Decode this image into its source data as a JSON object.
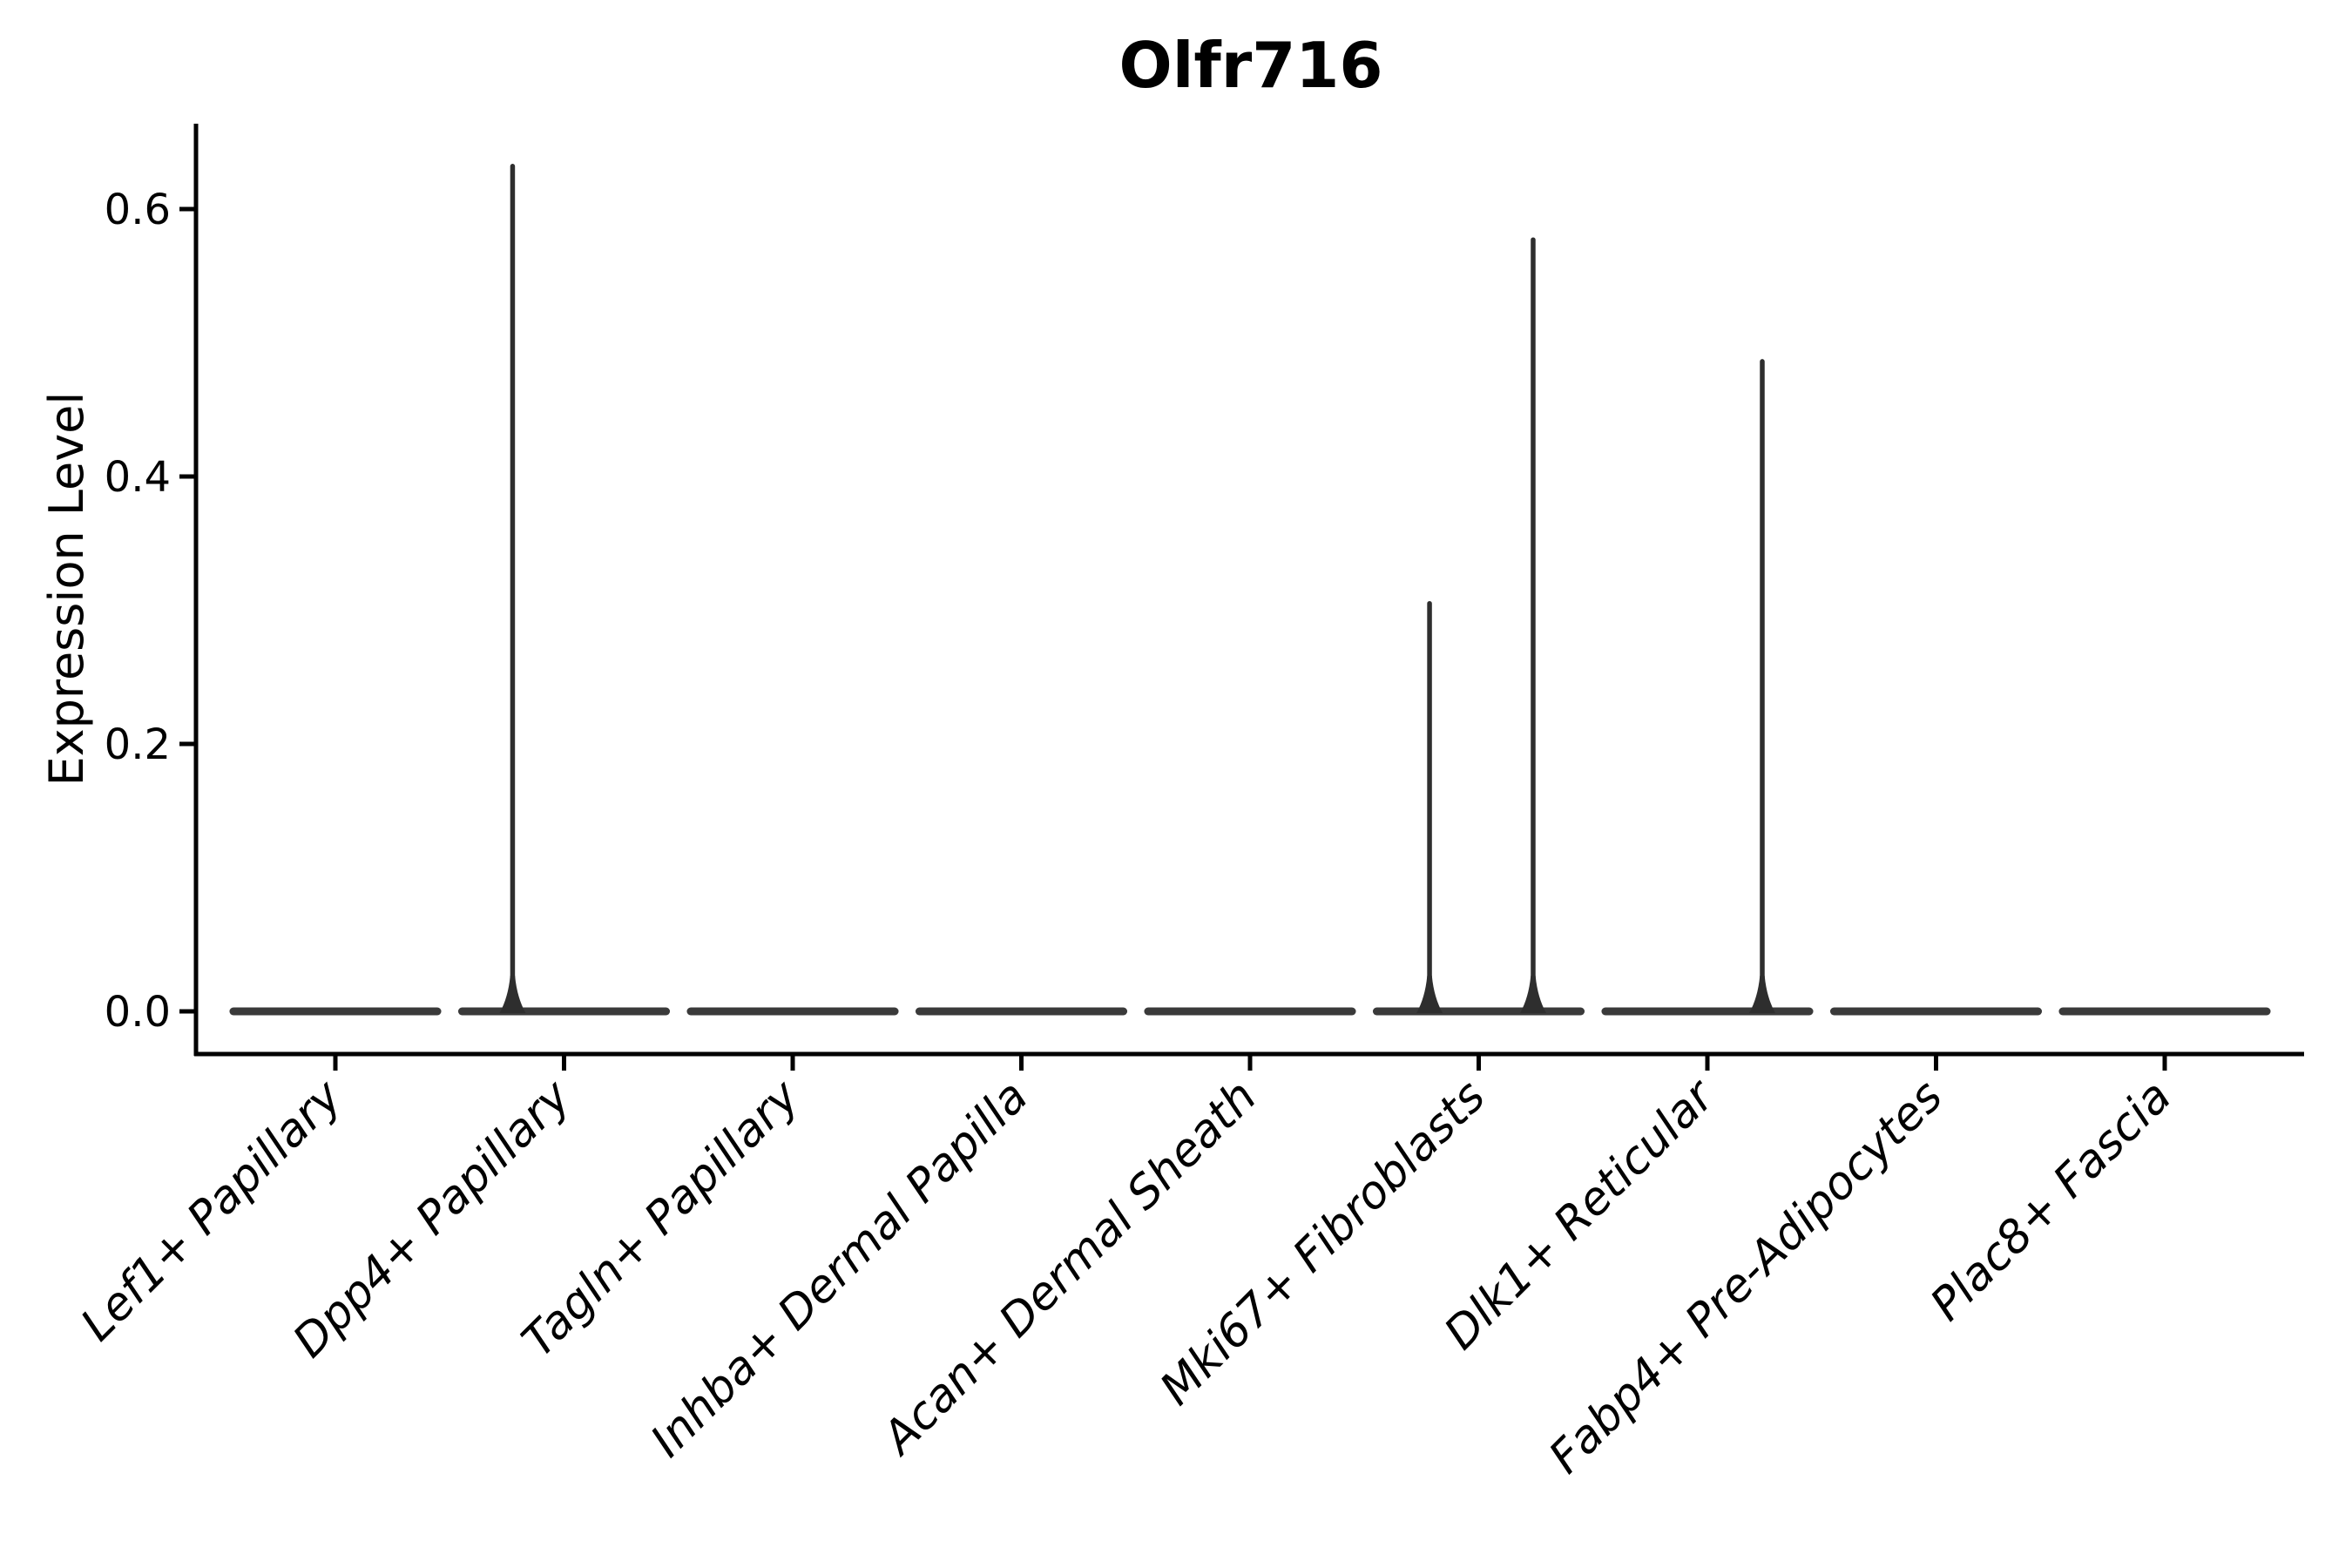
{
  "chart_data": {
    "type": "violin",
    "title": "Olfr716",
    "xlabel": "",
    "ylabel": "Expression Level",
    "grid": false,
    "legend": false,
    "ylim": [
      -0.032,
      0.664
    ],
    "ytick_values": [
      0.0,
      0.2,
      0.4,
      0.6
    ],
    "ytick_labels": [
      "0.0",
      "0.2",
      "0.4",
      "0.6"
    ],
    "categories": [
      "Lef1+ Papillary",
      "Dpp4+ Papillary",
      "Tagln+ Papillary",
      "Inhba+ Dermal Papilla",
      "Acan+ Dermal Sheath",
      "Mki67+ Fibroblasts",
      "Dlk1+ Reticular",
      "Fabp4+ Pre-Adipocytes",
      "Plac8+ Fascia"
    ],
    "violins": [
      {
        "category": "Lef1+ Papillary",
        "zero_base": true,
        "spikes": []
      },
      {
        "category": "Dpp4+ Papillary",
        "zero_base": true,
        "spikes": [
          {
            "offset": -0.225,
            "max": 0.634
          }
        ]
      },
      {
        "category": "Tagln+ Papillary",
        "zero_base": true,
        "spikes": []
      },
      {
        "category": "Inhba+ Dermal Papilla",
        "zero_base": true,
        "spikes": []
      },
      {
        "category": "Acan+ Dermal Sheath",
        "zero_base": true,
        "spikes": []
      },
      {
        "category": "Mki67+ Fibroblasts",
        "zero_base": true,
        "spikes": [
          {
            "offset": -0.215,
            "max": 0.307
          },
          {
            "offset": 0.238,
            "max": 0.579
          }
        ]
      },
      {
        "category": "Dlk1+ Reticular",
        "zero_base": true,
        "spikes": [
          {
            "offset": 0.24,
            "max": 0.488
          }
        ]
      },
      {
        "category": "Fabp4+ Pre-Adipocytes",
        "zero_base": true,
        "spikes": []
      },
      {
        "category": "Plac8+ Fascia",
        "zero_base": true,
        "spikes": []
      }
    ],
    "violin_base_halfwidth": 0.465,
    "colors": {
      "background": "#ffffff",
      "axis": "#000000",
      "text": "#000000",
      "violin_base": "#3a3a3a",
      "violin_spike": "#2e2e2e"
    }
  }
}
